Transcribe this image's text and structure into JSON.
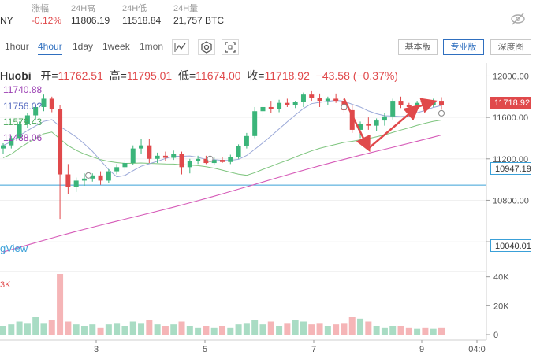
{
  "header": {
    "pair_partial": "NY",
    "change": {
      "label": "涨幅",
      "value": "-0.12%"
    },
    "high24": {
      "label": "24H高",
      "value": "11806.19"
    },
    "low24": {
      "label": "24H低",
      "value": "11518.84"
    },
    "vol24": {
      "label": "24H量",
      "value": "21,757 BTC"
    }
  },
  "toolbar": {
    "timeframes": [
      {
        "label": "1hour",
        "active": false
      },
      {
        "label": "4hour",
        "active": true
      },
      {
        "label": "1day",
        "active": false
      },
      {
        "label": "1week",
        "active": false
      },
      {
        "label": "1mon",
        "active": false
      }
    ],
    "modes": [
      {
        "label": "基本版",
        "active": false
      },
      {
        "label": "专业版",
        "active": true
      },
      {
        "label": "深度图",
        "active": false
      }
    ],
    "tool_icons": [
      "indicator-icon",
      "settings-icon",
      "fullscreen-icon"
    ]
  },
  "ohlc": {
    "exchange": "Huobi",
    "open_label": "开=",
    "open": "11762.51",
    "high_label": "高=",
    "high": "11795.01",
    "low_label": "低=",
    "low": "11674.00",
    "close_label": "收=",
    "close": "11718.92",
    "change": "−43.58 (−0.37%)"
  },
  "ma_labels": [
    {
      "text": "11740.88",
      "color": "#9b3fb3"
    },
    {
      "text": "11756.0?",
      "color": "#5b6fc2"
    },
    {
      "text": "11579.43",
      "color": "#49a85a"
    },
    {
      "text": "11438.06",
      "color": "#9b3fb3"
    }
  ],
  "watermark": "gView",
  "volume_label": "3K",
  "price_tags": [
    {
      "text": "11718.92",
      "bg": "#e0494b",
      "fg": "#ffffff"
    },
    {
      "text": "10947.19",
      "bg": "#ffffff",
      "fg": "#333333"
    },
    {
      "text": "10040.01",
      "bg": "#ffffff",
      "fg": "#333333"
    }
  ],
  "chart_data": {
    "type": "candlestick",
    "y_axis": {
      "ticks": [
        12000,
        11600,
        11200,
        10800,
        10400
      ],
      "ylim": [
        10150,
        12110
      ]
    },
    "volume_axis": {
      "ticks": [
        "40K",
        "20K",
        "0"
      ],
      "ylim": [
        0,
        42000
      ]
    },
    "x_axis": {
      "ticks": [
        "3",
        "5",
        "7",
        "9",
        "04:0"
      ]
    },
    "hlines": [
      {
        "value": 11718.92,
        "color": "#e0494b",
        "style": "dotted"
      },
      {
        "value": 10947.19,
        "color": "#3aa0d8",
        "style": "solid"
      },
      {
        "value": 10040.01,
        "color": "#3aa0d8",
        "style": "solid"
      }
    ],
    "candles": [
      [
        11300,
        11350,
        11250,
        11330
      ],
      [
        11330,
        11420,
        11300,
        11400
      ],
      [
        11400,
        11560,
        11380,
        11540
      ],
      [
        11540,
        11640,
        11500,
        11620
      ],
      [
        11620,
        11720,
        11580,
        11700
      ],
      [
        11700,
        11820,
        11660,
        11780
      ],
      [
        11780,
        11800,
        11650,
        11680
      ],
      [
        11680,
        11720,
        10620,
        11050
      ],
      [
        11050,
        11150,
        10860,
        10930
      ],
      [
        10930,
        11020,
        10880,
        10990
      ],
      [
        10990,
        11060,
        10940,
        11010
      ],
      [
        11010,
        11060,
        10980,
        11040
      ],
      [
        11040,
        11080,
        10950,
        10990
      ],
      [
        10990,
        11100,
        10970,
        11080
      ],
      [
        11080,
        11150,
        11050,
        11120
      ],
      [
        11120,
        11190,
        11090,
        11160
      ],
      [
        11160,
        11330,
        11140,
        11300
      ],
      [
        11300,
        11390,
        11250,
        11330
      ],
      [
        11330,
        11390,
        11160,
        11200
      ],
      [
        11200,
        11260,
        11160,
        11230
      ],
      [
        11230,
        11270,
        11180,
        11210
      ],
      [
        11210,
        11280,
        11190,
        11250
      ],
      [
        11250,
        11270,
        11050,
        11120
      ],
      [
        11120,
        11200,
        11060,
        11180
      ],
      [
        11180,
        11230,
        11150,
        11200
      ],
      [
        11200,
        11230,
        11150,
        11160
      ],
      [
        11160,
        11220,
        11140,
        11190
      ],
      [
        11190,
        11220,
        11160,
        11170
      ],
      [
        11170,
        11240,
        11150,
        11220
      ],
      [
        11220,
        11340,
        11200,
        11320
      ],
      [
        11320,
        11450,
        11300,
        11420
      ],
      [
        11420,
        11700,
        11400,
        11660
      ],
      [
        11660,
        11740,
        11600,
        11700
      ],
      [
        11700,
        11760,
        11640,
        11680
      ],
      [
        11680,
        11770,
        11650,
        11740
      ],
      [
        11740,
        11780,
        11700,
        11720
      ],
      [
        11720,
        11760,
        11690,
        11750
      ],
      [
        11750,
        11840,
        11700,
        11820
      ],
      [
        11820,
        11860,
        11760,
        11790
      ],
      [
        11790,
        11830,
        11700,
        11760
      ],
      [
        11760,
        11800,
        11720,
        11780
      ],
      [
        11780,
        11830,
        11740,
        11760
      ],
      [
        11760,
        11790,
        11640,
        11670
      ],
      [
        11670,
        11720,
        11450,
        11480
      ],
      [
        11480,
        11560,
        11400,
        11540
      ],
      [
        11540,
        11600,
        11480,
        11520
      ],
      [
        11520,
        11590,
        11470,
        11570
      ],
      [
        11570,
        11640,
        11520,
        11610
      ],
      [
        11610,
        11780,
        11580,
        11760
      ],
      [
        11760,
        11800,
        11690,
        11720
      ],
      [
        11720,
        11740,
        11670,
        11700
      ],
      [
        11700,
        11760,
        11680,
        11740
      ],
      [
        11740,
        11770,
        11700,
        11720
      ],
      [
        11720,
        11780,
        11700,
        11750
      ],
      [
        11760,
        11795,
        11674,
        11719
      ]
    ],
    "volumes": [
      6,
      7,
      9,
      8,
      12,
      8,
      10,
      42,
      9,
      7,
      6,
      7,
      5,
      7,
      8,
      6,
      9,
      8,
      10,
      7,
      6,
      7,
      9,
      6,
      5,
      6,
      5,
      6,
      5,
      7,
      8,
      10,
      7,
      9,
      6,
      8,
      10,
      9,
      7,
      8,
      6,
      7,
      8,
      12,
      11,
      9,
      6,
      5,
      6,
      6,
      5,
      4,
      5,
      4,
      5
    ],
    "annotations": [
      {
        "type": "arrow",
        "from": [
          42,
          11780
        ],
        "to": [
          45,
          11300
        ]
      },
      {
        "type": "arrow",
        "from": [
          45,
          11300
        ],
        "to": [
          51,
          11700
        ]
      },
      {
        "type": "arrow",
        "from": [
          51,
          11700
        ],
        "to": [
          53,
          11750
        ]
      }
    ]
  }
}
